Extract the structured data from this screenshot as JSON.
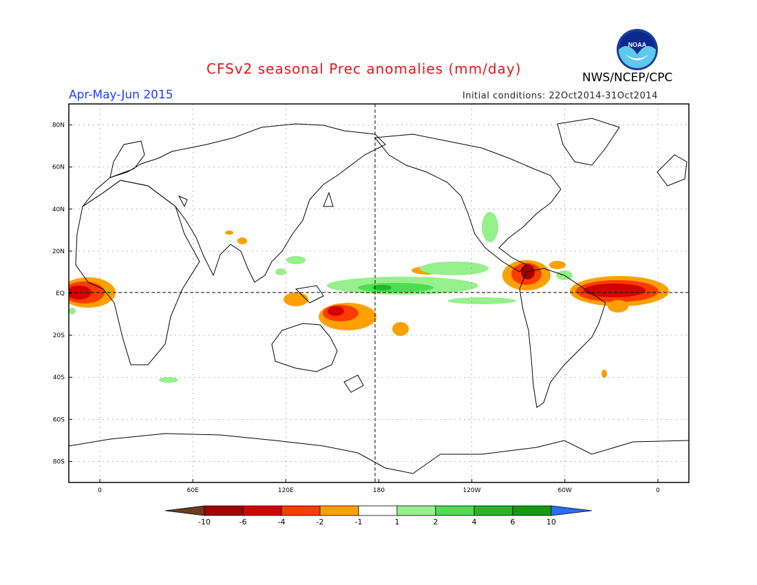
{
  "header": {
    "title": "CFSv2 seasonal Prec anomalies (mm/day)",
    "agency": "NWS/NCEP/CPC",
    "logo_text": "NOAA",
    "season": "Apr-May-Jun 2015",
    "initial_conditions": "Initial conditions: 22Oct2014-31Oct2014"
  },
  "map": {
    "projection": "cylindrical-equidistant",
    "lon_range": [
      -20,
      380
    ],
    "lat_range": [
      -90,
      90
    ],
    "grid": "dotted-every-20deg",
    "lat_labels": [
      "80N",
      "60N",
      "40N",
      "20N",
      "EQ",
      "20S",
      "40S",
      "60S",
      "80S"
    ],
    "lat_values": [
      80,
      60,
      40,
      20,
      0,
      -20,
      -40,
      -60,
      -80
    ],
    "lon_labels": [
      "0",
      "60E",
      "120E",
      "180",
      "120W",
      "60W",
      "0"
    ],
    "lon_values": [
      0,
      60,
      120,
      180,
      240,
      300,
      360
    ],
    "equator_line": "dashed",
    "dateline": "dashed"
  },
  "colorbar": {
    "labels": [
      "-10",
      "-6",
      "-4",
      "-2",
      "-1",
      "1",
      "2",
      "4",
      "6",
      "10"
    ],
    "colors": [
      "#6e3b1f",
      "#a50000",
      "#d40000",
      "#fa3c00",
      "#fea000",
      "#ffffff",
      "#96f08c",
      "#50dc50",
      "#28b428",
      "#109c10",
      "#2a6dfe"
    ]
  },
  "anomalies": {
    "units": "mm/day",
    "regions": [
      {
        "region": "East equatorial Atlantic / Gulf of Guinea",
        "lon": -5,
        "lat": 0,
        "level": -6
      },
      {
        "region": "Equatorial Atlantic off Brazil",
        "lon": 335,
        "lat": 1,
        "level": -6
      },
      {
        "region": "Central America / Colombia",
        "lon": 283,
        "lat": 6,
        "level": -10
      },
      {
        "region": "Tropical West Pacific north of Australia",
        "lon": 155,
        "lat": -9,
        "level": -4
      },
      {
        "region": "SE Asia / Maritime continent",
        "lon": 125,
        "lat": -3,
        "level": -2
      },
      {
        "region": "South Pacific east of dateline",
        "lon": 197,
        "lat": -16,
        "level": -2
      },
      {
        "region": "Central equatorial Pacific",
        "lon": 180,
        "lat": 0,
        "level": 4
      },
      {
        "region": "Eastern equatorial Pacific ITCZ",
        "lon": 230,
        "lat": 8,
        "level": 2
      },
      {
        "region": "South-east Pacific",
        "lon": 255,
        "lat": -5,
        "level": 2
      }
    ]
  }
}
